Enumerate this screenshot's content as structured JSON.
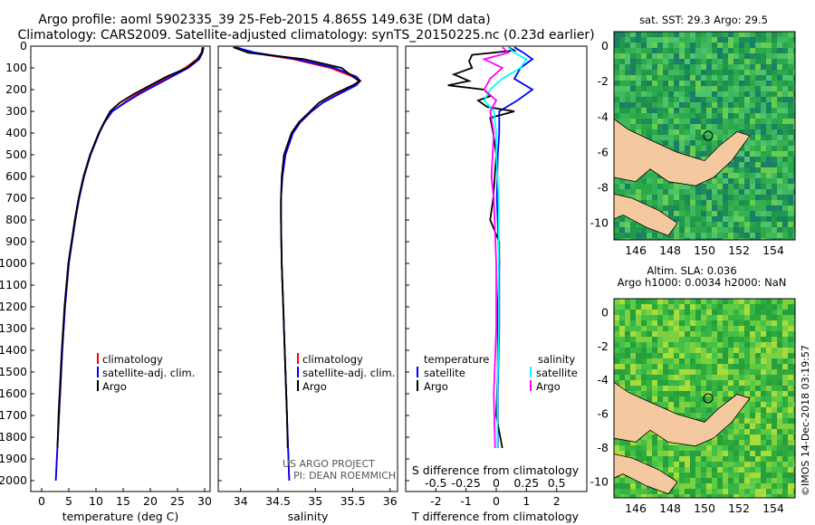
{
  "title": {
    "line1": "Argo profile: aoml 5902335_39 25-Feb-2015 4.865S 149.63E (DM data)",
    "line2": "Climatology: CARS2009. Satellite-adjusted climatology: synTS_20150225.nc (0.23d earlier)"
  },
  "colors": {
    "climatology": "#ff0000",
    "satellite": "#0000ff",
    "argo": "#000000",
    "sal_satellite": "#00ffff",
    "sal_argo": "#ff00ff",
    "land": "#f5c9a0",
    "sea": "#22aa44"
  },
  "chart_data": [
    {
      "type": "line",
      "name": "temperature",
      "xlabel": "temperature (deg C)",
      "ylabel": "",
      "xlim": [
        -2,
        31
      ],
      "ylim": [
        2050,
        0
      ],
      "xticks": [
        "0",
        "5",
        "10",
        "15",
        "20",
        "25",
        "30"
      ],
      "yticks": [
        "0",
        "100",
        "200",
        "300",
        "400",
        "500",
        "600",
        "700",
        "800",
        "900",
        "1000",
        "1100",
        "1200",
        "1300",
        "1400",
        "1500",
        "1600",
        "1700",
        "1800",
        "1900",
        "2000"
      ],
      "legend": [
        "climatology",
        "satellite-adj. clim.",
        "Argo"
      ],
      "series": [
        {
          "name": "climatology",
          "depth": [
            5,
            30,
            60,
            100,
            140,
            180,
            220,
            260,
            300,
            350,
            400,
            500,
            600,
            700,
            800,
            1000,
            1200,
            1400,
            1700,
            2000
          ],
          "values": [
            29.6,
            29.4,
            28.6,
            26.4,
            23.6,
            20.4,
            17.6,
            15.2,
            13.0,
            11.6,
            10.6,
            9.0,
            7.8,
            6.9,
            6.2,
            5.0,
            4.3,
            3.8,
            3.2,
            2.6
          ]
        },
        {
          "name": "satellite-adj. clim.",
          "depth": [
            5,
            30,
            60,
            100,
            140,
            180,
            220,
            260,
            300,
            350,
            400,
            500,
            600,
            700,
            800,
            1000,
            1200,
            1400,
            1700,
            2000
          ],
          "values": [
            29.8,
            29.6,
            29.0,
            27.0,
            24.0,
            21.0,
            18.0,
            15.4,
            13.0,
            11.6,
            10.6,
            9.0,
            7.8,
            6.9,
            6.2,
            5.0,
            4.3,
            3.8,
            3.2,
            2.6
          ]
        },
        {
          "name": "Argo",
          "depth": [
            5,
            30,
            60,
            100,
            140,
            180,
            220,
            260,
            300,
            350,
            400,
            500,
            600,
            700,
            800,
            1000,
            1200,
            1400,
            1700,
            1850
          ],
          "values": [
            29.7,
            29.5,
            28.7,
            26.8,
            23.0,
            20.0,
            17.0,
            14.4,
            12.6,
            11.5,
            10.5,
            8.9,
            7.7,
            6.8,
            6.1,
            4.9,
            4.2,
            3.7,
            3.1,
            2.9
          ]
        }
      ]
    },
    {
      "type": "line",
      "name": "salinity",
      "xlabel": "salinity",
      "xlim": [
        33.7,
        36.1
      ],
      "ylim": [
        2050,
        0
      ],
      "xticks": [
        "34",
        "34.5",
        "35",
        "35.5",
        "36"
      ],
      "legend": [
        "climatology",
        "satellite-adj. clim.",
        "Argo"
      ],
      "annotation": [
        "US ARGO PROJECT",
        "PI: DEAN ROEMMICH"
      ],
      "series": [
        {
          "name": "climatology",
          "depth": [
            5,
            30,
            60,
            100,
            140,
            160,
            180,
            220,
            260,
            300,
            350,
            400,
            500,
            600,
            700,
            800,
            1000,
            1200,
            1400,
            1700,
            2000
          ],
          "values": [
            33.95,
            34.15,
            34.7,
            35.2,
            35.5,
            35.58,
            35.52,
            35.3,
            35.1,
            34.95,
            34.8,
            34.7,
            34.6,
            34.56,
            34.54,
            34.54,
            34.55,
            34.57,
            34.59,
            34.62,
            34.65
          ]
        },
        {
          "name": "satellite-adj. clim.",
          "depth": [
            5,
            30,
            60,
            100,
            140,
            160,
            180,
            220,
            260,
            300,
            350,
            400,
            500,
            600,
            700,
            800,
            1000,
            1200,
            1400,
            1700,
            2000
          ],
          "values": [
            33.93,
            34.2,
            34.75,
            35.25,
            35.55,
            35.6,
            35.55,
            35.32,
            35.1,
            34.95,
            34.8,
            34.7,
            34.6,
            34.56,
            34.54,
            34.54,
            34.55,
            34.57,
            34.59,
            34.62,
            34.65
          ]
        },
        {
          "name": "Argo",
          "depth": [
            5,
            30,
            60,
            100,
            140,
            160,
            180,
            220,
            260,
            300,
            350,
            400,
            500,
            600,
            700,
            800,
            1000,
            1200,
            1400,
            1700,
            1850
          ],
          "values": [
            33.9,
            34.1,
            34.85,
            35.35,
            35.5,
            35.6,
            35.5,
            35.25,
            35.05,
            34.93,
            34.78,
            34.68,
            34.58,
            34.55,
            34.54,
            34.54,
            34.55,
            34.57,
            34.59,
            34.62,
            34.63
          ]
        }
      ]
    },
    {
      "type": "line",
      "name": "difference",
      "xlabel": "T difference from climatology",
      "xlabel2": "S difference from climatology",
      "xlim": [
        -3,
        3
      ],
      "ylim": [
        2050,
        0
      ],
      "xticks": [
        "-2",
        "-1",
        "0",
        "1",
        "2"
      ],
      "xticks2": [
        "-0.5",
        "-0.25",
        "0",
        "0.25",
        "0.5"
      ],
      "legend_titles": [
        "temperature",
        "salinity"
      ],
      "legend": [
        "satellite",
        "Argo",
        "satellite",
        "Argo"
      ],
      "series": [
        {
          "name": "T satellite",
          "depth": [
            5,
            30,
            60,
            100,
            150,
            200,
            250,
            300,
            400,
            500,
            700,
            1000,
            1300,
            1600,
            1850
          ],
          "values": [
            0.6,
            0.9,
            1.2,
            0.8,
            0.6,
            1.2,
            0.7,
            0.1,
            0.1,
            0.05,
            0.02,
            0.1,
            0.1,
            0.05,
            0.05
          ]
        },
        {
          "name": "T Argo",
          "depth": [
            5,
            20,
            40,
            70,
            100,
            130,
            160,
            180,
            200,
            230,
            250,
            280,
            300,
            330,
            400,
            500,
            700,
            800,
            900,
            1000,
            1200,
            1500,
            1700,
            1850
          ],
          "values": [
            0.4,
            0.6,
            -0.8,
            -0.9,
            -0.8,
            -1.4,
            -0.9,
            -1.6,
            -0.4,
            -0.2,
            -0.6,
            -0.3,
            0.6,
            -0.2,
            -0.1,
            0.0,
            -0.1,
            -0.2,
            0.1,
            0.1,
            0.05,
            0.05,
            0.0,
            0.2
          ]
        },
        {
          "name": "S satellite",
          "depth": [
            5,
            30,
            60,
            100,
            150,
            200,
            250,
            300,
            400,
            500,
            700,
            1000,
            1300,
            1600,
            1850
          ],
          "values": [
            0.1,
            0.15,
            0.25,
            0.2,
            0.05,
            -0.05,
            -0.1,
            -0.02,
            0.0,
            0.0,
            0.02,
            0.02,
            0.02,
            0.01,
            0.01
          ]
        },
        {
          "name": "S Argo",
          "depth": [
            5,
            30,
            60,
            100,
            150,
            200,
            250,
            300,
            400,
            500,
            600,
            700,
            1000,
            1300,
            1600,
            1850
          ],
          "values": [
            0.05,
            0.1,
            -0.1,
            0.05,
            -0.05,
            -0.1,
            0.0,
            -0.05,
            -0.02,
            -0.03,
            -0.04,
            -0.02,
            0.0,
            0.0,
            -0.02,
            -0.01
          ]
        }
      ]
    }
  ],
  "maps": {
    "top_title": "sat. SST: 29.3 Argo: 29.5",
    "bottom_title1": "Altim. SLA: 0.036",
    "bottom_title2": "Argo h1000: 0.0034 h2000: NaN",
    "xticks": [
      "146",
      "148",
      "150",
      "152",
      "154"
    ],
    "yticks": [
      "0",
      "-2",
      "-4",
      "-6",
      "-8",
      "-10"
    ]
  },
  "footer": "©IMOS 14-Dec-2018 03:19:57"
}
